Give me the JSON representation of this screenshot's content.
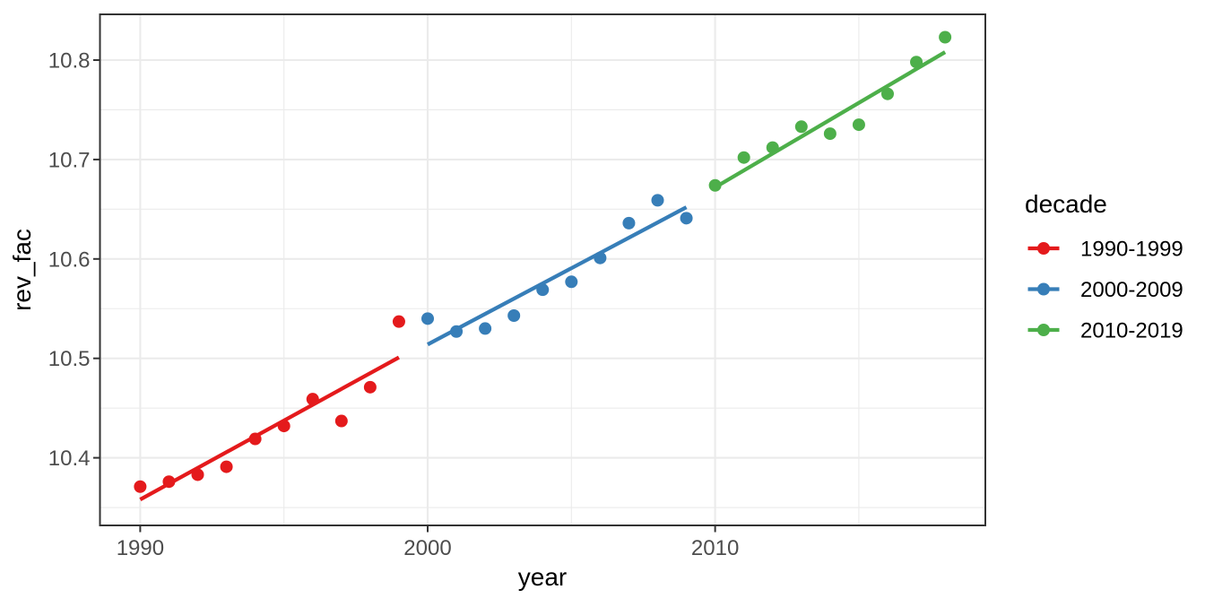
{
  "figure": {
    "background": "#FFFFFF",
    "panel_background": "#FFFFFF",
    "panel_border_color": "#333333",
    "grid_major_color": "#EBEBEB",
    "grid_minor_color": "#EBEBEB",
    "tick_mark_color": "#333333",
    "tick_label_color": "#4D4D4D",
    "axis_title_color": "#000000"
  },
  "chart_data": {
    "type": "scatter",
    "title": "",
    "xlabel": "year",
    "ylabel": "rev_fac",
    "legend_title": "decade",
    "legend_position": "right",
    "grid": true,
    "xlim": [
      1988.6,
      2019.4
    ],
    "ylim": [
      10.332,
      10.846
    ],
    "x_major_ticks": [
      1990,
      2000,
      2010
    ],
    "x_tick_labels": [
      "1990",
      "2000",
      "2010"
    ],
    "x_minor_gridlines": [
      1995,
      2005,
      2015
    ],
    "y_major_ticks": [
      10.4,
      10.5,
      10.6,
      10.7,
      10.8
    ],
    "y_tick_labels": [
      "10.4",
      "10.5",
      "10.6",
      "10.7",
      "10.8"
    ],
    "y_minor_gridlines": [
      10.35,
      10.45,
      10.55,
      10.65,
      10.75
    ],
    "series": [
      {
        "name": "1990-1999",
        "color": "#E41A1C",
        "points": {
          "x": [
            1990,
            1991,
            1992,
            1993,
            1994,
            1995,
            1996,
            1997,
            1998,
            1999
          ],
          "y": [
            10.371,
            10.376,
            10.383,
            10.391,
            10.419,
            10.432,
            10.459,
            10.437,
            10.471,
            10.537
          ]
        },
        "trend_line": {
          "x": [
            1990,
            1999
          ],
          "y": [
            10.358,
            10.501
          ]
        }
      },
      {
        "name": "2000-2009",
        "color": "#377EB8",
        "points": {
          "x": [
            2000,
            2001,
            2002,
            2003,
            2004,
            2005,
            2006,
            2007,
            2008,
            2009
          ],
          "y": [
            10.54,
            10.527,
            10.53,
            10.543,
            10.569,
            10.577,
            10.601,
            10.636,
            10.659,
            10.641
          ]
        },
        "trend_line": {
          "x": [
            2000,
            2009
          ],
          "y": [
            10.514,
            10.652
          ]
        }
      },
      {
        "name": "2010-2019",
        "color": "#4DAF4A",
        "points": {
          "x": [
            2010,
            2011,
            2012,
            2013,
            2014,
            2015,
            2016,
            2017,
            2018
          ],
          "y": [
            10.674,
            10.702,
            10.712,
            10.733,
            10.726,
            10.735,
            10.766,
            10.798,
            10.823
          ]
        },
        "trend_line": {
          "x": [
            2010,
            2018
          ],
          "y": [
            10.672,
            10.808
          ]
        }
      }
    ]
  }
}
